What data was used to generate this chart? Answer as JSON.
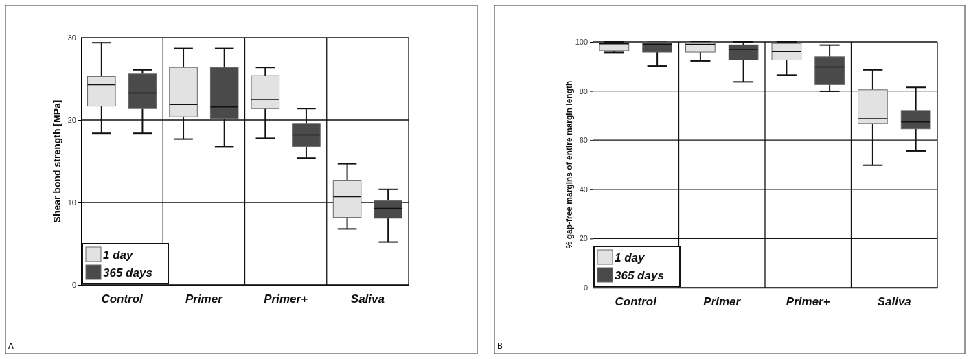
{
  "chart_data": [
    {
      "type": "box",
      "ylabel": "Shear bond strength [MPa]",
      "categories": [
        "Control",
        "Primer",
        "Primer+",
        "Saliva"
      ],
      "ylim": [
        0,
        30
      ],
      "yticks": [
        0,
        10,
        20,
        30
      ],
      "grid": true,
      "legend": "bottom left",
      "annotations": [
        "A"
      ],
      "series": [
        {
          "name": "1 day",
          "color": "#e2e2e2",
          "boxes": [
            {
              "low": 18.4,
              "q1": 21.7,
              "median": 24.3,
              "q3": 25.3,
              "high": 29.4
            },
            {
              "low": 17.7,
              "q1": 20.4,
              "median": 21.9,
              "q3": 26.4,
              "high": 28.7
            },
            {
              "low": 17.8,
              "q1": 21.4,
              "median": 22.5,
              "q3": 25.4,
              "high": 26.4
            },
            {
              "low": 6.8,
              "q1": 8.2,
              "median": 10.7,
              "q3": 12.7,
              "high": 14.7
            }
          ]
        },
        {
          "name": "365 days",
          "color": "#4a4a4a",
          "boxes": [
            {
              "low": 18.4,
              "q1": 21.4,
              "median": 23.3,
              "q3": 25.6,
              "high": 26.1
            },
            {
              "low": 16.8,
              "q1": 20.2,
              "median": 21.6,
              "q3": 26.4,
              "high": 28.7
            },
            {
              "low": 15.4,
              "q1": 16.8,
              "median": 18.2,
              "q3": 19.6,
              "high": 21.4
            },
            {
              "low": 5.2,
              "q1": 8.1,
              "median": 9.3,
              "q3": 10.2,
              "high": 11.6
            }
          ]
        }
      ]
    },
    {
      "type": "box",
      "ylabel": "% gap-free margins of entire margin length",
      "categories": [
        "Control",
        "Primer",
        "Primer+",
        "Saliva"
      ],
      "ylim": [
        0,
        100
      ],
      "yticks": [
        0,
        20,
        40,
        60,
        80,
        100
      ],
      "grid": true,
      "legend": "bottom left",
      "annotations": [
        "B"
      ],
      "series": [
        {
          "name": "1 day",
          "color": "#e2e2e2",
          "boxes": [
            {
              "low": 95.7,
              "q1": 96.4,
              "median": 99.2,
              "q3": 99.6,
              "high": 100
            },
            {
              "low": 92.2,
              "q1": 95.8,
              "median": 99,
              "q3": 99.8,
              "high": 100
            },
            {
              "low": 86.5,
              "q1": 92.6,
              "median": 96,
              "q3": 99.4,
              "high": 100
            },
            {
              "low": 49.8,
              "q1": 66.8,
              "median": 68.7,
              "q3": 80.5,
              "high": 88.6
            }
          ]
        },
        {
          "name": "365 days",
          "color": "#4a4a4a",
          "boxes": [
            {
              "low": 90.2,
              "q1": 95.8,
              "median": 99,
              "q3": 100,
              "high": 100
            },
            {
              "low": 83.7,
              "q1": 92.6,
              "median": 96.9,
              "q3": 98.8,
              "high": 100
            },
            {
              "low": 79.9,
              "q1": 82.6,
              "median": 89.8,
              "q3": 93.9,
              "high": 98.7
            },
            {
              "low": 55.6,
              "q1": 64.6,
              "median": 67.4,
              "q3": 72.1,
              "high": 81.5
            }
          ]
        }
      ]
    }
  ]
}
